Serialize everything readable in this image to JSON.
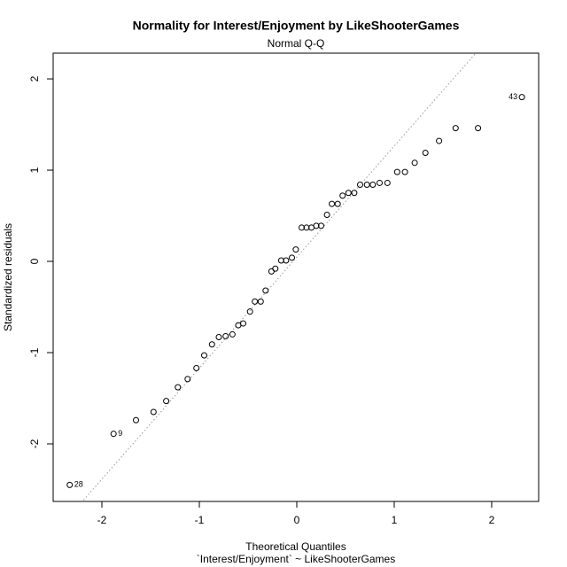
{
  "chart_data": {
    "type": "scatter",
    "title": "Normality for Interest/Enjoyment by LikeShooterGames",
    "subtitle": "Normal Q-Q",
    "x_label": "Theoretical Quantiles",
    "x_sublabel": "`Interest/Enjoyment` ~ LikeShooterGames",
    "y_label": "Standardized residuals",
    "x": [
      -2.33,
      -1.88,
      -1.65,
      -1.47,
      -1.34,
      -1.22,
      -1.12,
      -1.03,
      -0.95,
      -0.87,
      -0.8,
      -0.73,
      -0.66,
      -0.6,
      -0.55,
      -0.48,
      -0.43,
      -0.37,
      -0.32,
      -0.26,
      -0.22,
      -0.16,
      -0.11,
      -0.05,
      -0.01,
      0.05,
      0.1,
      0.15,
      0.2,
      0.25,
      0.31,
      0.36,
      0.42,
      0.47,
      0.53,
      0.59,
      0.65,
      0.72,
      0.78,
      0.85,
      0.93,
      1.03,
      1.11,
      1.21,
      1.32,
      1.46,
      1.63,
      1.86,
      2.31
    ],
    "y": [
      -2.45,
      -1.89,
      -1.74,
      -1.65,
      -1.53,
      -1.38,
      -1.29,
      -1.17,
      -1.03,
      -0.91,
      -0.83,
      -0.82,
      -0.8,
      -0.7,
      -0.68,
      -0.55,
      -0.44,
      -0.44,
      -0.32,
      -0.11,
      -0.08,
      0.01,
      0.01,
      0.04,
      0.13,
      0.37,
      0.37,
      0.37,
      0.39,
      0.39,
      0.51,
      0.63,
      0.63,
      0.72,
      0.75,
      0.75,
      0.84,
      0.84,
      0.84,
      0.86,
      0.86,
      0.98,
      0.98,
      1.08,
      1.19,
      1.32,
      1.46,
      1.46,
      1.8
    ],
    "point_labels": [
      {
        "index": 0,
        "label": "28"
      },
      {
        "index": 1,
        "label": "9"
      },
      {
        "index": 48,
        "label": "43"
      }
    ],
    "reference_line": {
      "intercept": 0.047,
      "slope": 1.217
    },
    "xlim": [
      -2.5,
      2.482
    ],
    "ylim": [
      -2.631,
      2.282
    ],
    "xticks": [
      -2,
      -1,
      0,
      1,
      2
    ],
    "yticks": [
      -2,
      -1,
      0,
      1,
      2
    ],
    "color": "#000000",
    "line_color": "#999999"
  }
}
